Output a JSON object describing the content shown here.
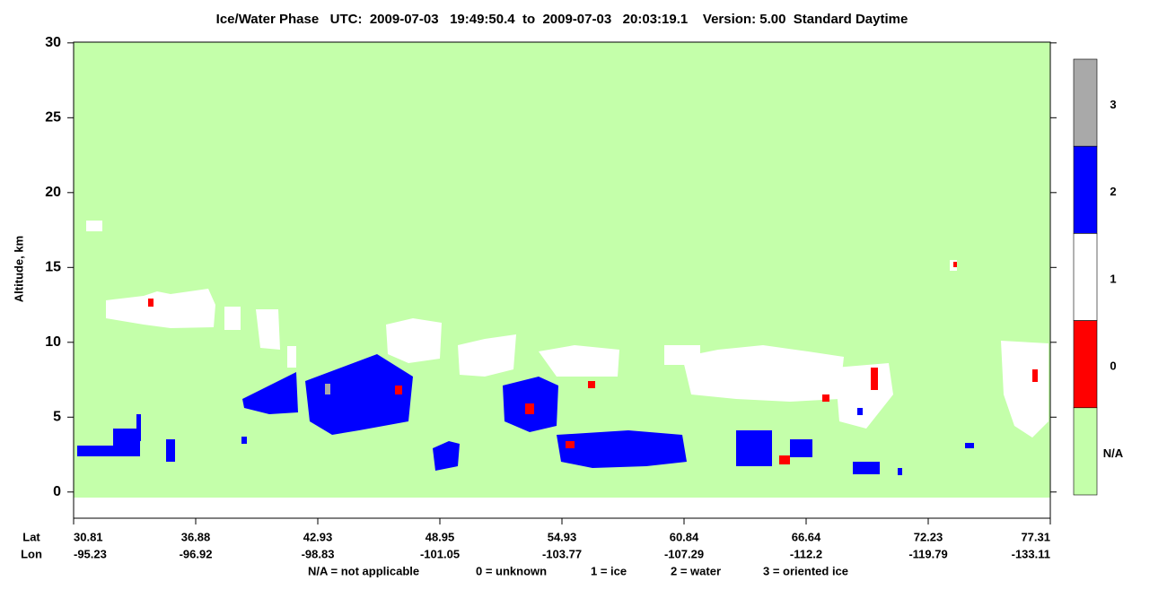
{
  "chart_data": {
    "type": "curtain",
    "title": "Ice/Water Phase   UTC:  2009-07-03   19:49:50.4  to  2009-07-03   20:03:19.1    Version: 5.00  Standard Daytime",
    "ylabel": "Altitude, km",
    "ylim": [
      -1.75,
      30.05
    ],
    "yticks": [
      0,
      5,
      10,
      15,
      20,
      25,
      30
    ],
    "xrow_labels": [
      "Lat",
      "Lon"
    ],
    "lat": [
      30.81,
      36.88,
      42.93,
      48.95,
      54.93,
      60.84,
      66.64,
      72.23,
      77.31
    ],
    "lon": [
      -95.23,
      -96.92,
      -98.83,
      -101.05,
      -103.77,
      -107.29,
      -112.2,
      -119.79,
      -133.11
    ],
    "colorbar": {
      "labels": [
        3,
        2,
        1,
        0,
        "N/A"
      ],
      "colors": [
        "#a9a9a9",
        "#0000ff",
        "#ffffff",
        "#ff0000",
        "#c4ffaa"
      ]
    },
    "legend_note": [
      "N/A = not applicable",
      "0 = unknown",
      "1 = ice",
      "2 = water",
      "3 = oriented ice"
    ]
  }
}
